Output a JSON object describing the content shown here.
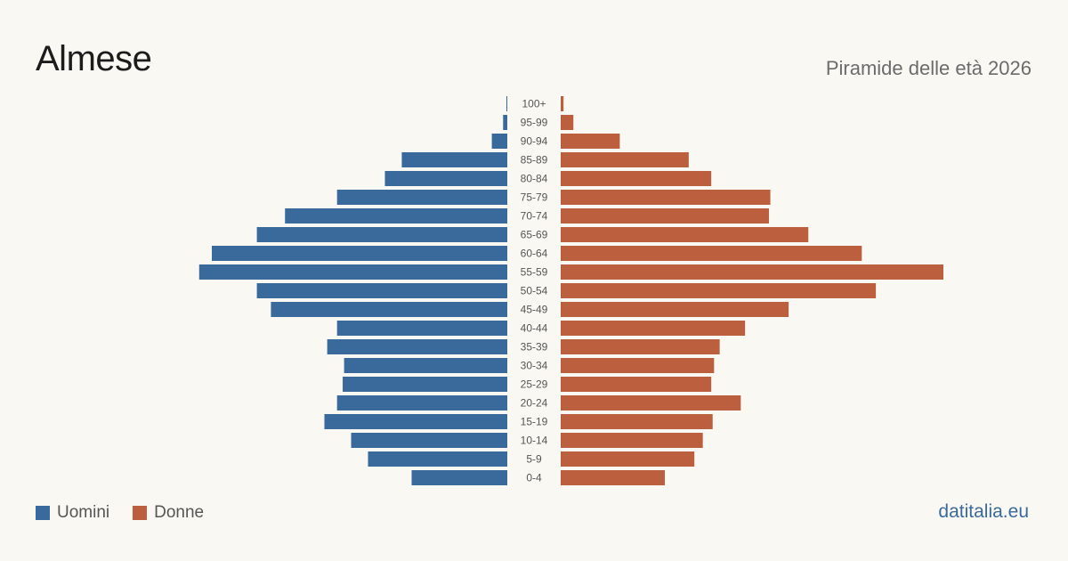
{
  "header": {
    "title": "Almese",
    "subtitle": "Piramide delle età 2026"
  },
  "legend": {
    "men_label": "Uomini",
    "women_label": "Donne"
  },
  "footer": {
    "brand": "datitalia.eu"
  },
  "colors": {
    "men": "#3a6a9b",
    "women": "#bb5f3e",
    "age_label": "#555555",
    "background": "#faf8f3"
  },
  "chart_data": {
    "type": "bar",
    "orientation": "horizontal-pyramid",
    "categories": [
      "100+",
      "95-99",
      "90-94",
      "85-89",
      "80-84",
      "75-79",
      "70-74",
      "65-69",
      "60-64",
      "55-59",
      "50-54",
      "45-49",
      "40-44",
      "35-39",
      "30-34",
      "25-29",
      "20-24",
      "15-19",
      "10-14",
      "5-9",
      "0-4"
    ],
    "series": [
      {
        "name": "Uomini",
        "values": [
          0.5,
          3,
          11,
          75,
          87,
          121,
          158,
          178,
          210,
          219,
          178,
          168,
          121,
          128,
          116,
          117,
          121,
          130,
          111,
          99,
          68
        ]
      },
      {
        "name": "Donne",
        "values": [
          2,
          9,
          42,
          91,
          107,
          149,
          148,
          176,
          214,
          272,
          224,
          162,
          131,
          113,
          109,
          107,
          128,
          108,
          101,
          95,
          74
        ]
      }
    ],
    "xlim": [
      0,
      272
    ],
    "grid": false
  }
}
